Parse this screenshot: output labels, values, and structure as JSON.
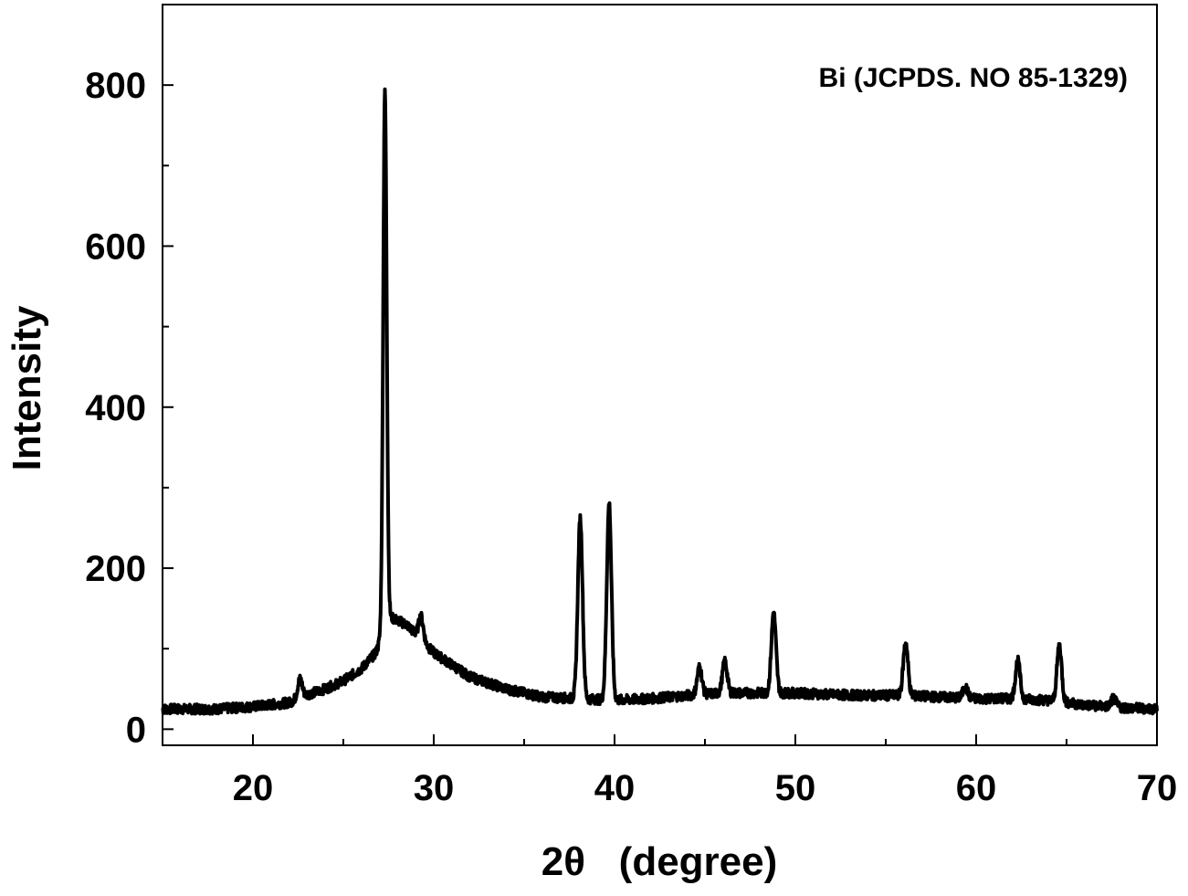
{
  "chart_data": {
    "type": "line",
    "title": "",
    "xlabel": "2θ   (degree)",
    "ylabel": "Intensity",
    "xlim": [
      15,
      70
    ],
    "ylim": [
      -20,
      900
    ],
    "x_ticks": [
      20,
      30,
      40,
      50,
      60,
      70
    ],
    "y_ticks": [
      0,
      200,
      400,
      600,
      800
    ],
    "x_tick_labels": [
      "20",
      "30",
      "40",
      "50",
      "60",
      "70"
    ],
    "y_tick_labels": [
      "0",
      "200",
      "400",
      "600",
      "800"
    ],
    "grid": false,
    "legend": "none",
    "annotation": "Bi (JCPDS. NO 85-1329)",
    "line_color": "#000000",
    "series": [
      {
        "baseline": [
          [
            15,
            25
          ],
          [
            18,
            25
          ],
          [
            20,
            28
          ],
          [
            22,
            33
          ],
          [
            23,
            43
          ],
          [
            24,
            50
          ],
          [
            25,
            60
          ],
          [
            26,
            75
          ],
          [
            26.8,
            95
          ],
          [
            27.5,
            140
          ],
          [
            28.5,
            130
          ],
          [
            30,
            95
          ],
          [
            32,
            65
          ],
          [
            34,
            50
          ],
          [
            36,
            40
          ],
          [
            38,
            38
          ],
          [
            40,
            36
          ],
          [
            42,
            38
          ],
          [
            44,
            42
          ],
          [
            46,
            45
          ],
          [
            48,
            45
          ],
          [
            50,
            45
          ],
          [
            52,
            43
          ],
          [
            54,
            42
          ],
          [
            56,
            42
          ],
          [
            58,
            40
          ],
          [
            60,
            38
          ],
          [
            62,
            38
          ],
          [
            64,
            36
          ],
          [
            66,
            30
          ],
          [
            68,
            27
          ],
          [
            70,
            25
          ]
        ],
        "peaks": [
          {
            "x": 22.6,
            "y": 62
          },
          {
            "x": 27.3,
            "y": 790
          },
          {
            "x": 29.3,
            "y": 140
          },
          {
            "x": 38.1,
            "y": 262
          },
          {
            "x": 39.7,
            "y": 280
          },
          {
            "x": 44.7,
            "y": 77
          },
          {
            "x": 46.1,
            "y": 84
          },
          {
            "x": 48.8,
            "y": 145
          },
          {
            "x": 56.1,
            "y": 108
          },
          {
            "x": 59.4,
            "y": 52
          },
          {
            "x": 62.3,
            "y": 85
          },
          {
            "x": 64.6,
            "y": 104
          },
          {
            "x": 67.6,
            "y": 38
          }
        ]
      }
    ]
  }
}
